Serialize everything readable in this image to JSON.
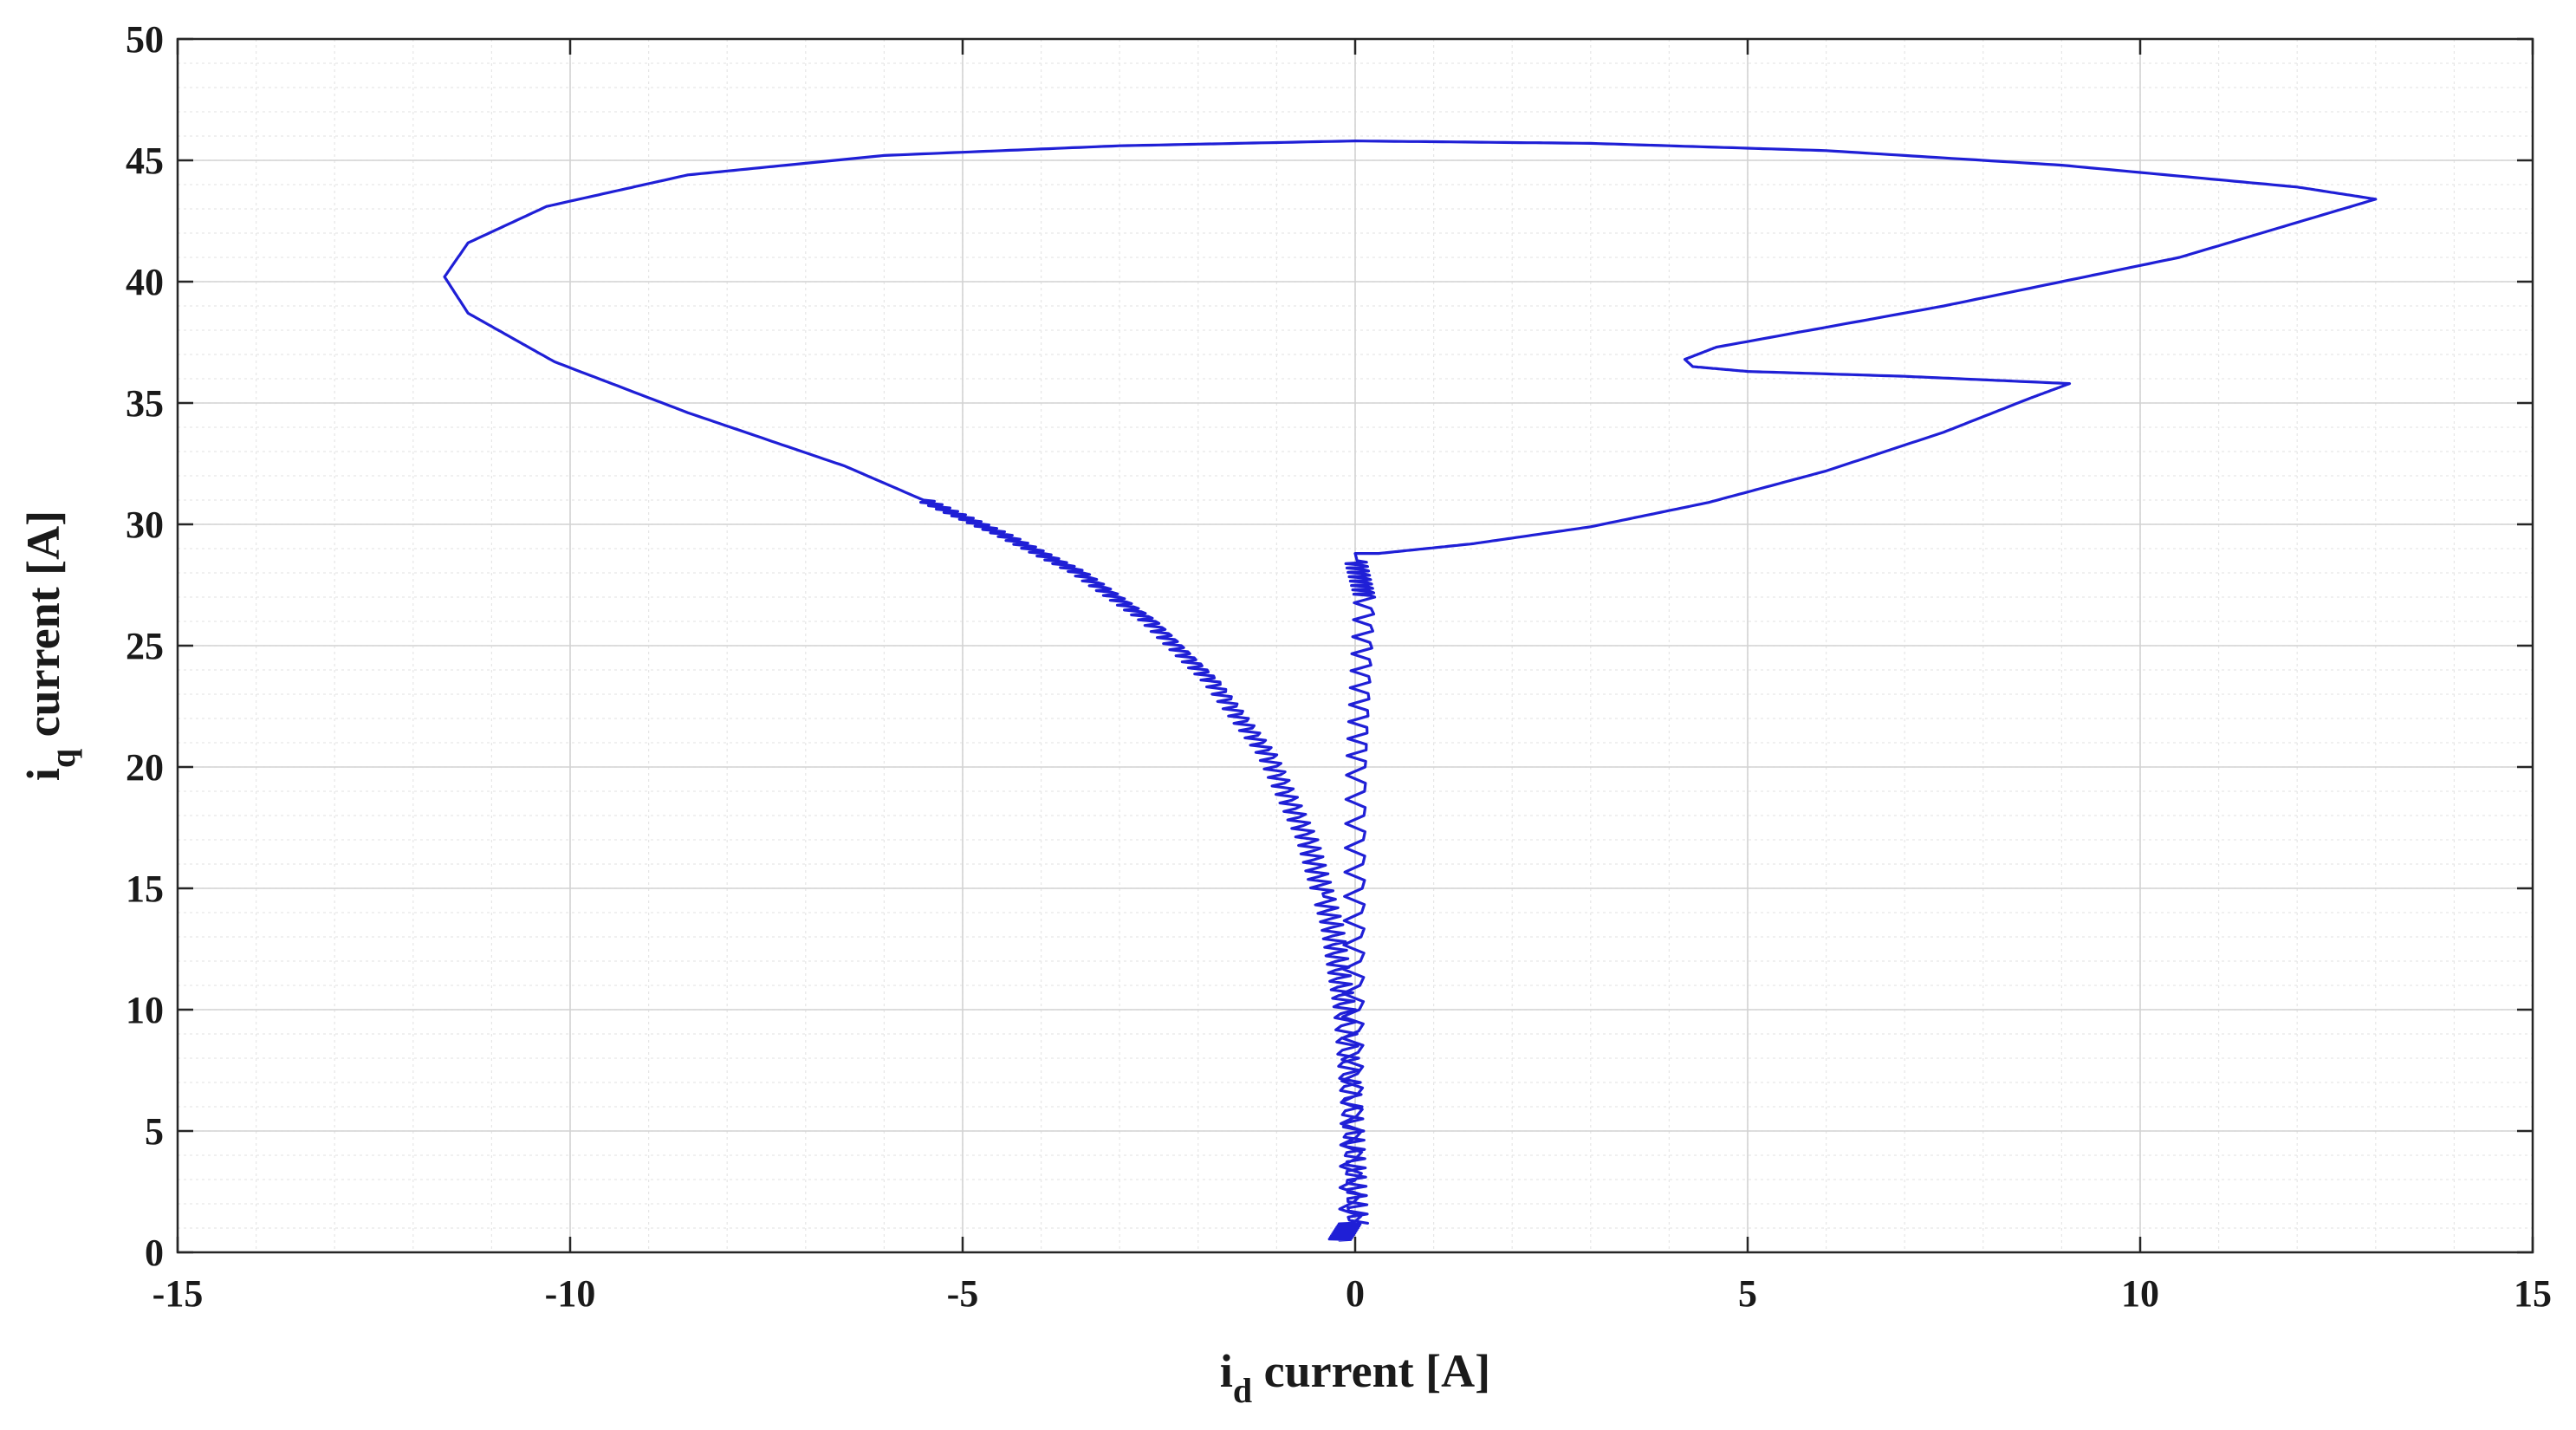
{
  "chart_data": {
    "type": "line",
    "title": "",
    "xlabel": {
      "main": "i",
      "sub": "d",
      "rest": " current [A]"
    },
    "ylabel": {
      "main": "i",
      "sub": "q",
      "rest": " current [A]"
    },
    "xlim": [
      -15,
      15
    ],
    "ylim": [
      0,
      50
    ],
    "xticks": [
      -15,
      -10,
      -5,
      0,
      5,
      10,
      15
    ],
    "yticks": [
      0,
      5,
      10,
      15,
      20,
      25,
      30,
      35,
      40,
      45,
      50
    ],
    "grid": true,
    "minor_grid": true,
    "legend": "none",
    "series": [
      {
        "color": "#1f1fd6",
        "trajectory": [
          {
            "x": -0.2,
            "y": 0.5
          },
          {
            "x": -0.05,
            "y": 1.2
          },
          {
            "x": 0.0,
            "y": 10.0
          },
          {
            "x": 0.05,
            "y": 20.0
          },
          {
            "x": 0.15,
            "y": 27.0
          },
          {
            "x": 0.0,
            "y": 28.8
          },
          {
            "x": 0.3,
            "y": 28.8
          },
          {
            "x": 1.5,
            "y": 29.2
          },
          {
            "x": 3.0,
            "y": 29.9
          },
          {
            "x": 4.5,
            "y": 30.9
          },
          {
            "x": 6.0,
            "y": 32.2
          },
          {
            "x": 7.5,
            "y": 33.8
          },
          {
            "x": 8.6,
            "y": 35.2
          },
          {
            "x": 9.1,
            "y": 35.8
          },
          {
            "x": 7.0,
            "y": 36.1
          },
          {
            "x": 5.0,
            "y": 36.3
          },
          {
            "x": 4.3,
            "y": 36.5
          },
          {
            "x": 4.2,
            "y": 36.8
          },
          {
            "x": 4.6,
            "y": 37.3
          },
          {
            "x": 7.5,
            "y": 39.0
          },
          {
            "x": 10.5,
            "y": 41.0
          },
          {
            "x": 13.0,
            "y": 43.4
          },
          {
            "x": 12.0,
            "y": 43.9
          },
          {
            "x": 9.0,
            "y": 44.8
          },
          {
            "x": 6.0,
            "y": 45.4
          },
          {
            "x": 3.0,
            "y": 45.7
          },
          {
            "x": 0.0,
            "y": 45.8
          },
          {
            "x": -3.0,
            "y": 45.6
          },
          {
            "x": -6.0,
            "y": 45.2
          },
          {
            "x": -8.5,
            "y": 44.4
          },
          {
            "x": -10.3,
            "y": 43.1
          },
          {
            "x": -11.3,
            "y": 41.6
          },
          {
            "x": -11.6,
            "y": 40.2
          },
          {
            "x": -11.3,
            "y": 38.7
          },
          {
            "x": -10.2,
            "y": 36.7
          },
          {
            "x": -8.5,
            "y": 34.6
          },
          {
            "x": -6.5,
            "y": 32.4
          },
          {
            "x": -5.5,
            "y": 31.0
          },
          {
            "x": -4.5,
            "y": 29.6
          },
          {
            "x": -3.5,
            "y": 28.0
          },
          {
            "x": -2.6,
            "y": 26.0
          },
          {
            "x": -1.8,
            "y": 23.5
          },
          {
            "x": -1.1,
            "y": 20.5
          },
          {
            "x": -0.6,
            "y": 17.0
          },
          {
            "x": -0.3,
            "y": 13.5
          },
          {
            "x": -0.15,
            "y": 10.0
          },
          {
            "x": -0.05,
            "y": 5.0
          },
          {
            "x": 0.0,
            "y": 1.2
          }
        ]
      }
    ]
  }
}
